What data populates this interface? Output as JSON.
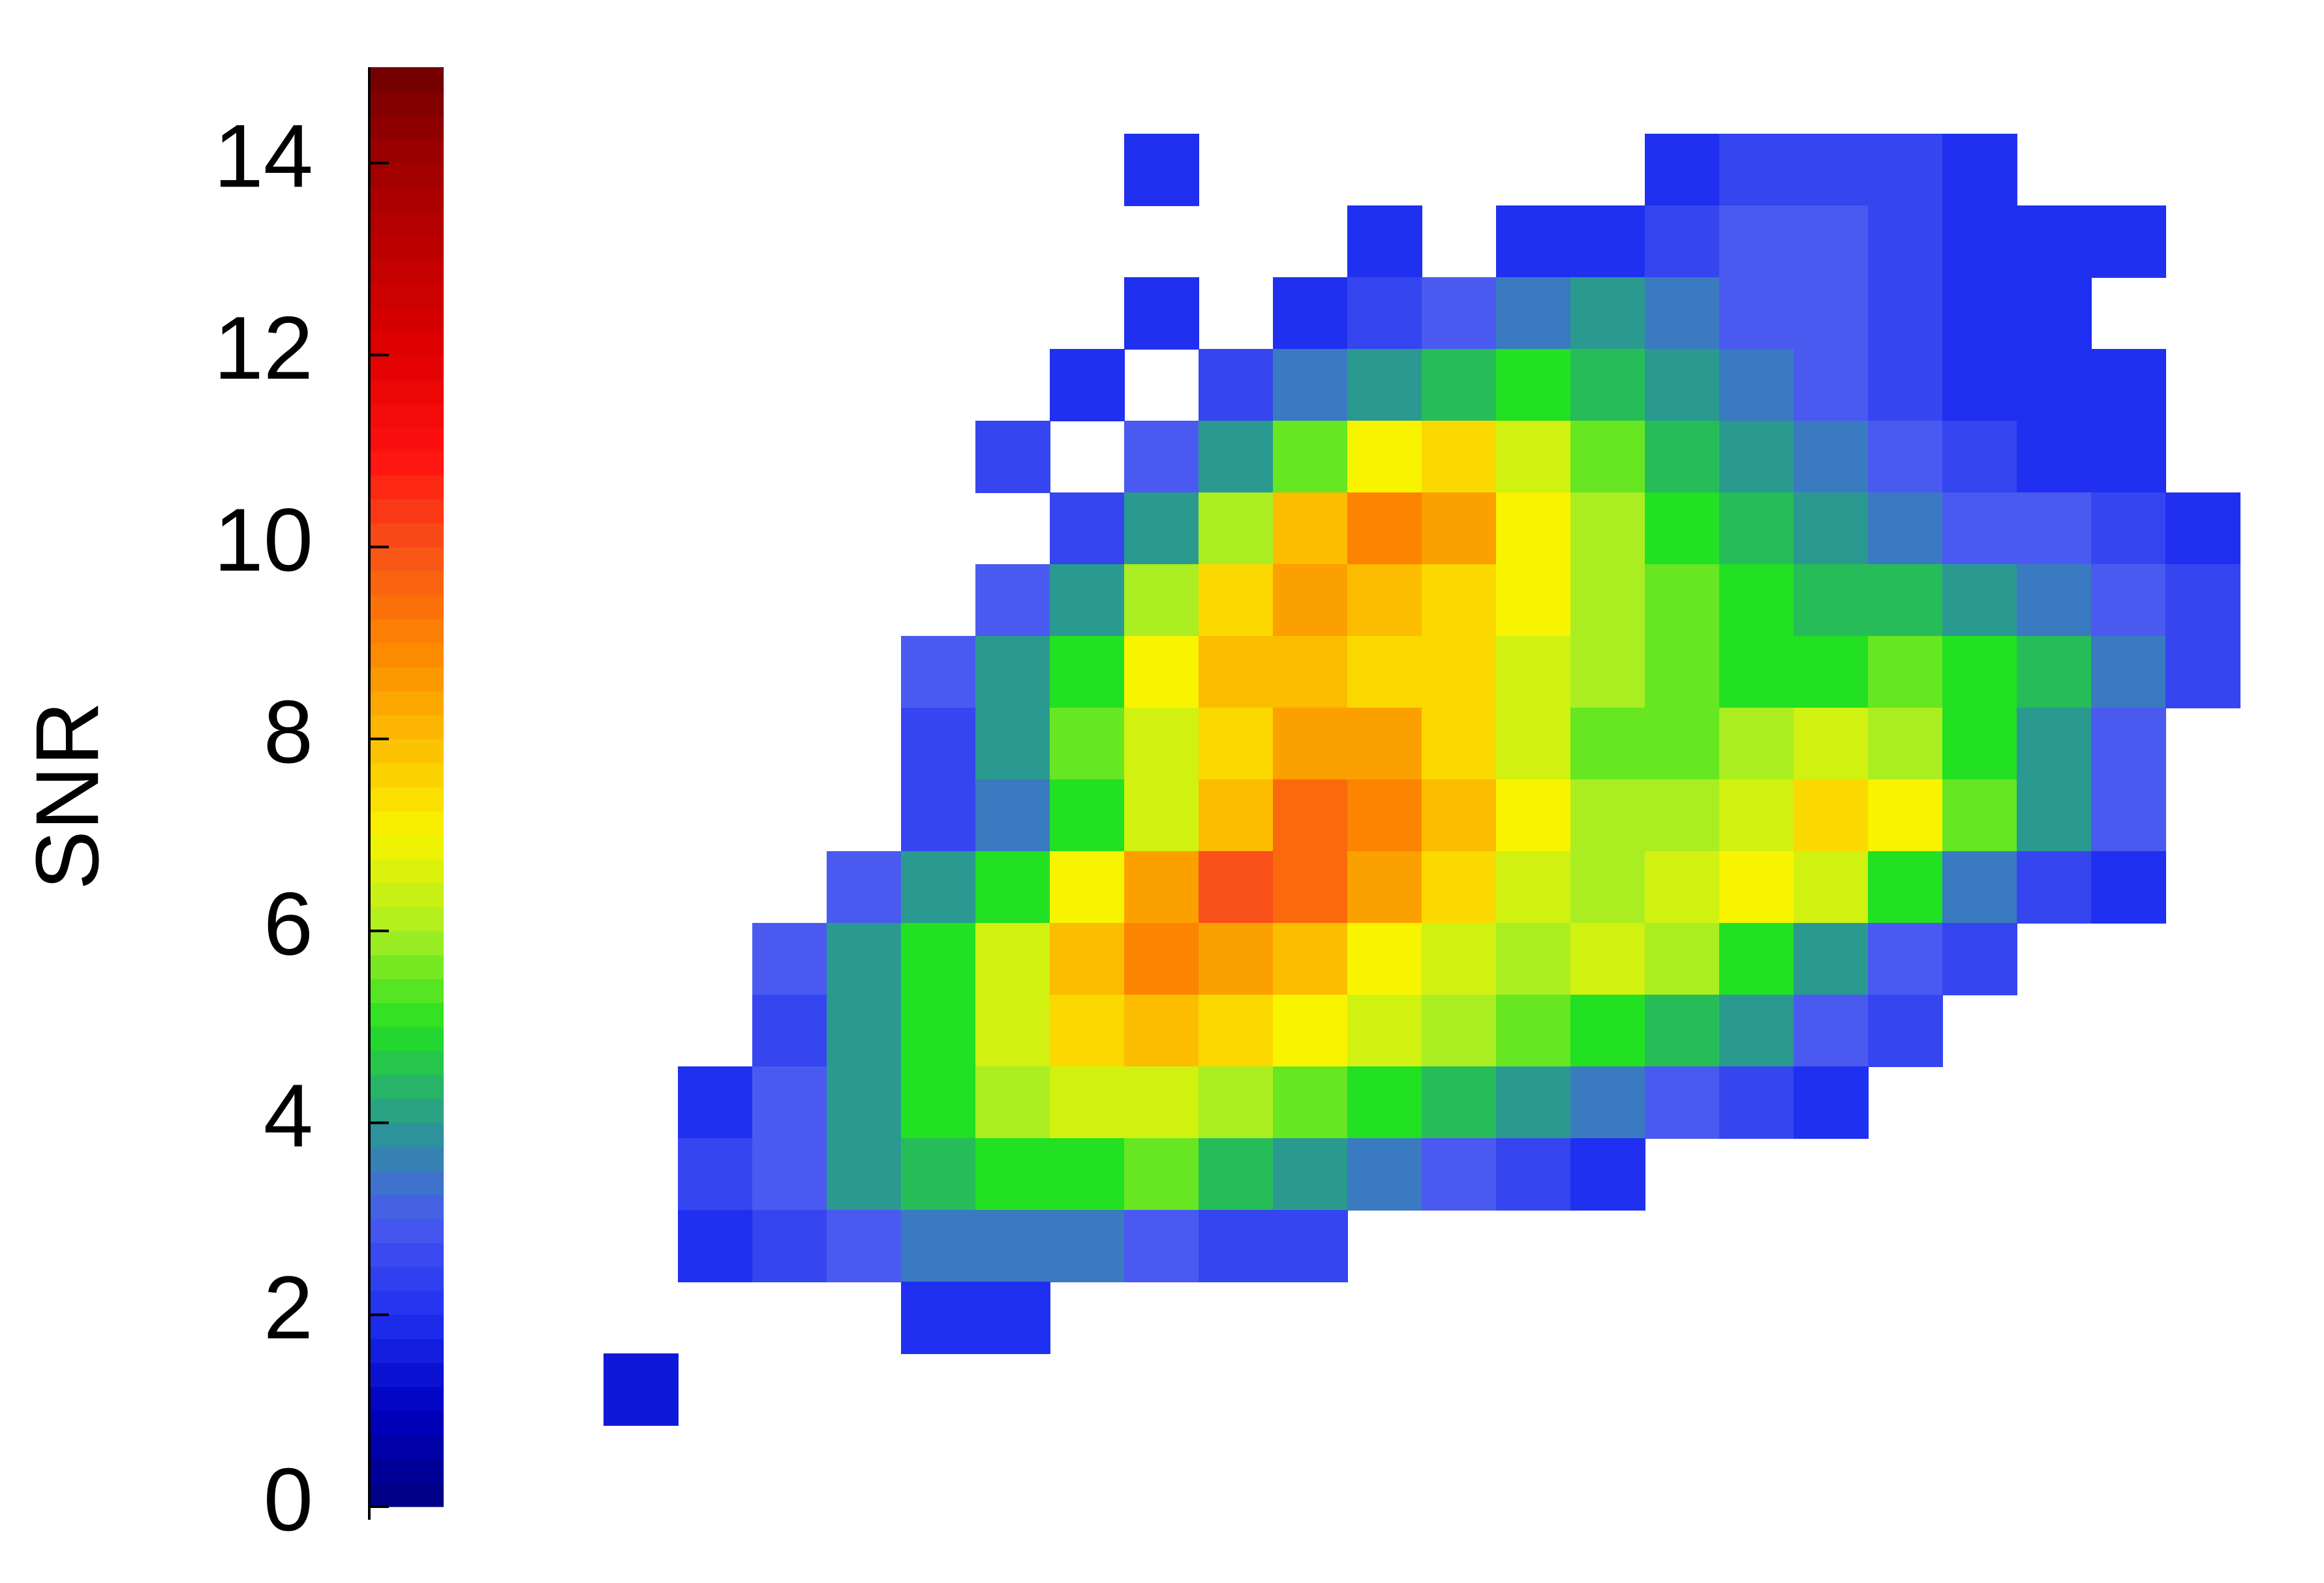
{
  "chart_data": {
    "type": "heatmap",
    "colorbar_label": "SNR",
    "zlim": [
      0,
      15
    ],
    "zticks": [
      0,
      2,
      4,
      6,
      8,
      10,
      12,
      14
    ],
    "colormap": [
      "#000080",
      "#0000c0",
      "#2030f0",
      "#4a5af0",
      "#2a9a90",
      "#22e022",
      "#aaee22",
      "#f8f400",
      "#fcbc00",
      "#fc8400",
      "#f85018",
      "#ff1010",
      "#e00000",
      "#c00000",
      "#a00000",
      "#700000"
    ],
    "z": [
      [
        null,
        null,
        null,
        null,
        null,
        null,
        null,
        2,
        null,
        null,
        null,
        null,
        null,
        null,
        2,
        2.5,
        2.5,
        2.5,
        2,
        null,
        null,
        null
      ],
      [
        null,
        null,
        null,
        null,
        null,
        null,
        null,
        null,
        null,
        null,
        2,
        null,
        2,
        2,
        2.5,
        3,
        3,
        2.5,
        2,
        2,
        2,
        null
      ],
      [
        null,
        null,
        null,
        null,
        null,
        null,
        null,
        2,
        null,
        2,
        2.5,
        3,
        3.5,
        4,
        3.5,
        3,
        3,
        2.5,
        2,
        2,
        null,
        null
      ],
      [
        null,
        null,
        null,
        null,
        null,
        null,
        2,
        null,
        2.5,
        3.5,
        4,
        4.5,
        5,
        4.5,
        4,
        3.5,
        3,
        2.5,
        2,
        2,
        2,
        null
      ],
      [
        null,
        null,
        null,
        null,
        null,
        2.5,
        null,
        3,
        4,
        5.5,
        7,
        7.5,
        6.5,
        5.5,
        4.5,
        4,
        3.5,
        3,
        2.5,
        2,
        2,
        null
      ],
      [
        null,
        null,
        null,
        null,
        null,
        null,
        2.5,
        4,
        6,
        8,
        9,
        8.5,
        7,
        6,
        5,
        4.5,
        4,
        3.5,
        3,
        3,
        2.5,
        2
      ],
      [
        null,
        null,
        null,
        null,
        null,
        3,
        4,
        6,
        7.5,
        8.5,
        8,
        7.5,
        7,
        6,
        5.5,
        5,
        4.5,
        4.5,
        4,
        3.5,
        3,
        2.5
      ],
      [
        null,
        null,
        null,
        null,
        3,
        4,
        5,
        7,
        8,
        8,
        7.5,
        7.5,
        6.5,
        6,
        5.5,
        5,
        5,
        5.5,
        5,
        4.5,
        3.5,
        2.5
      ],
      [
        null,
        null,
        null,
        null,
        2.5,
        4,
        5.5,
        6.5,
        7.5,
        8.5,
        8.5,
        7.5,
        6.5,
        5.5,
        5.5,
        6,
        6.5,
        6,
        5,
        4,
        3,
        null
      ],
      [
        null,
        null,
        null,
        null,
        2.5,
        3.5,
        5,
        6.5,
        8,
        9.5,
        9,
        8,
        7,
        6,
        6,
        6.5,
        7.5,
        7,
        5.5,
        4,
        3,
        null
      ],
      [
        null,
        null,
        null,
        3,
        4,
        5,
        7,
        8.5,
        10,
        9.5,
        8.5,
        7.5,
        6.5,
        6,
        6.5,
        7,
        6.5,
        5,
        3.5,
        2.5,
        2,
        null
      ],
      [
        null,
        null,
        3,
        4,
        5,
        6.5,
        8,
        9,
        8.5,
        8,
        7,
        6.5,
        6,
        6.5,
        6,
        5,
        4,
        3,
        2.5,
        null,
        null,
        null
      ],
      [
        null,
        null,
        2.5,
        4,
        5,
        6.5,
        7.5,
        8,
        7.5,
        7,
        6.5,
        6,
        5.5,
        5,
        4.5,
        4,
        3,
        2.5,
        null,
        null,
        null,
        null
      ],
      [
        null,
        2,
        3,
        4,
        5,
        6,
        6.5,
        6.5,
        6,
        5.5,
        5,
        4.5,
        4,
        3.5,
        3,
        2.5,
        2,
        null,
        null,
        null,
        null,
        null
      ],
      [
        null,
        2.5,
        3,
        4,
        4.5,
        5,
        5,
        5.5,
        4.5,
        4,
        3.5,
        3,
        2.5,
        2,
        null,
        null,
        null,
        null,
        null,
        null,
        null,
        null
      ],
      [
        null,
        2,
        2.5,
        3,
        3.5,
        3.5,
        3.5,
        3,
        2.5,
        2.5,
        null,
        null,
        null,
        null,
        null,
        null,
        null,
        null,
        null,
        null,
        null,
        null
      ],
      [
        null,
        null,
        null,
        null,
        2,
        2,
        null,
        null,
        null,
        null,
        null,
        null,
        null,
        null,
        null,
        null,
        null,
        null,
        null,
        null,
        null,
        null
      ],
      [
        1.5,
        null,
        null,
        null,
        null,
        null,
        null,
        null,
        null,
        null,
        null,
        null,
        null,
        null,
        null,
        null,
        null,
        null,
        null,
        null,
        null,
        null
      ]
    ]
  }
}
